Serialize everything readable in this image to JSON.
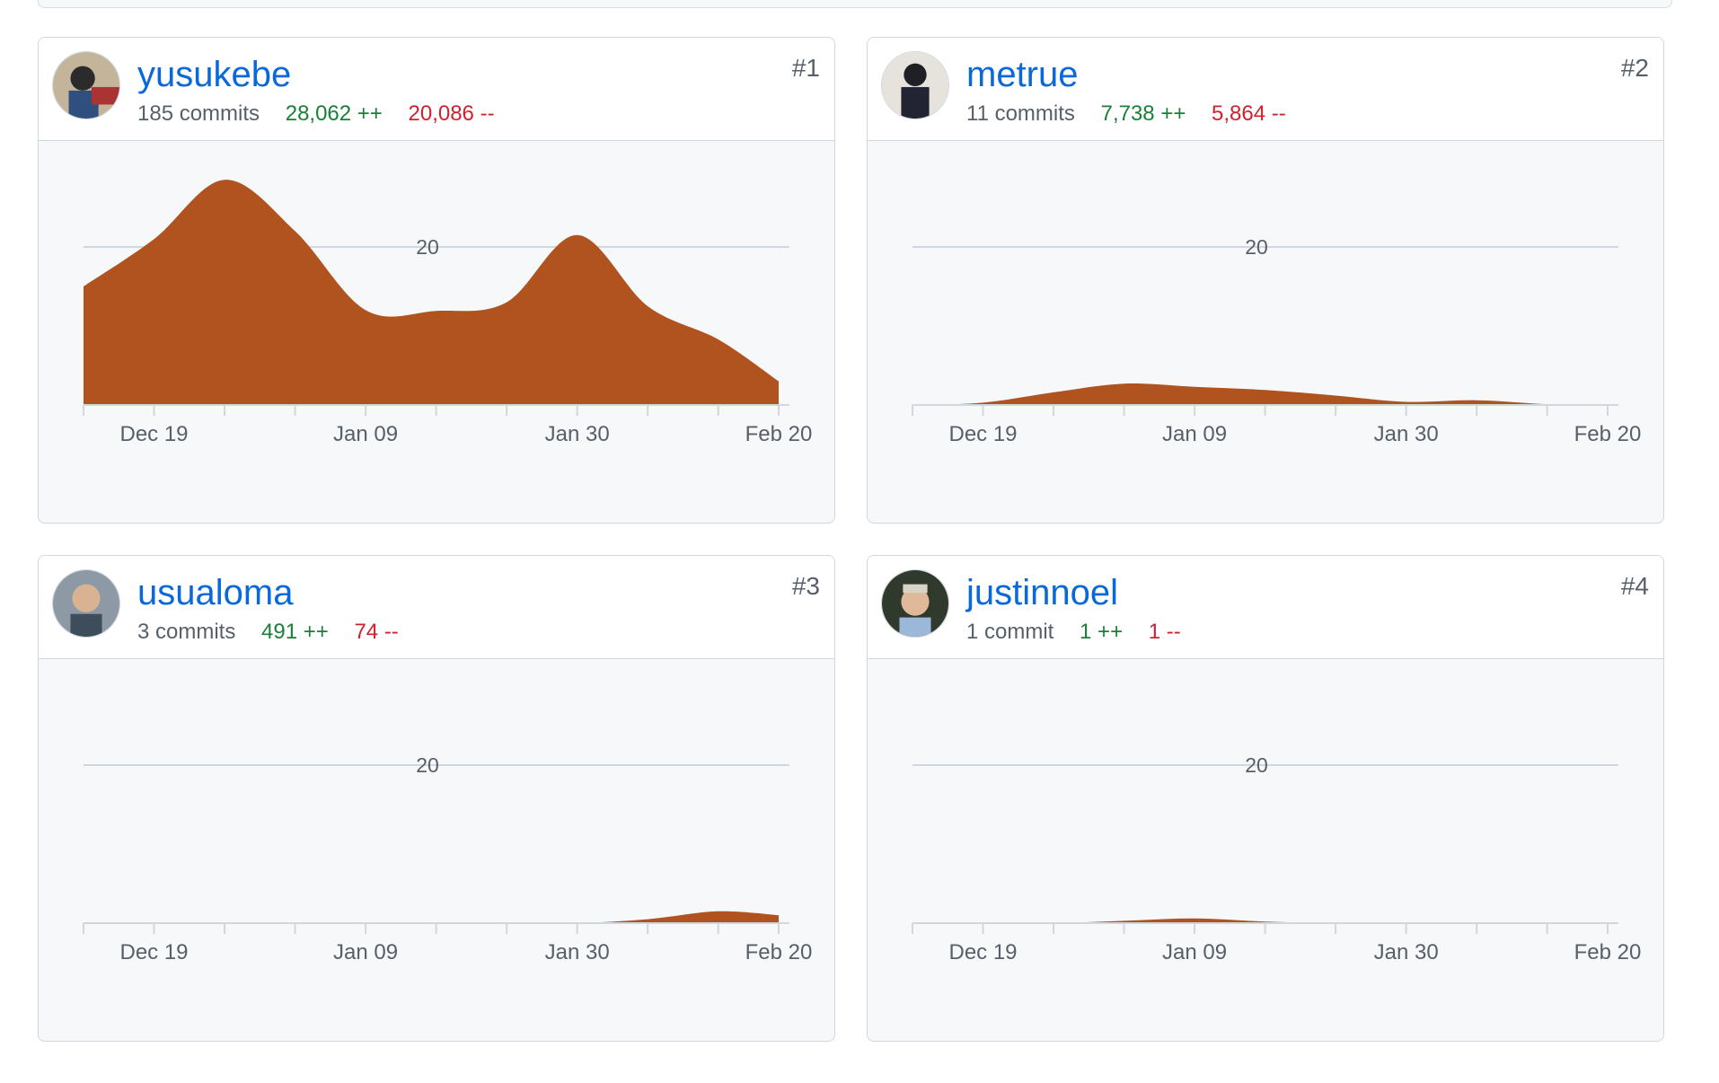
{
  "colors": {
    "area": "#b1531e",
    "axis": "#d0d7de",
    "label": "#57606a",
    "link": "#0969da"
  },
  "icons": {
    "avatar": "avatar-photo"
  },
  "contributors": [
    {
      "rank": "#1",
      "username": "yusukebe",
      "commits": "185 commits",
      "additions": "28,062 ++",
      "deletions": "20,086 --"
    },
    {
      "rank": "#2",
      "username": "metrue",
      "commits": "11 commits",
      "additions": "7,738 ++",
      "deletions": "5,864 --"
    },
    {
      "rank": "#3",
      "username": "usualoma",
      "commits": "3 commits",
      "additions": "491 ++",
      "deletions": "74 --"
    },
    {
      "rank": "#4",
      "username": "justinnoel",
      "commits": "1 commit",
      "additions": "1 ++",
      "deletions": "1 --"
    }
  ],
  "chart_data": [
    {
      "type": "area",
      "title": "yusukebe",
      "x": [
        "2021-12-12",
        "2021-12-19",
        "2021-12-26",
        "2022-01-02",
        "2022-01-09",
        "2022-01-16",
        "2022-01-23",
        "2022-01-30",
        "2022-02-06",
        "2022-02-13",
        "2022-02-19"
      ],
      "y": [
        15,
        21,
        28.5,
        22,
        12,
        11.9,
        13,
        21.5,
        12.5,
        8.3,
        3
      ],
      "ylim": [
        0,
        40
      ],
      "gridlines": [
        20
      ],
      "x_tick_labels": [
        "Dec 19",
        "Jan 09",
        "Jan 30",
        "Feb 20"
      ]
    },
    {
      "type": "area",
      "title": "metrue",
      "x": [
        "2021-12-12",
        "2021-12-19",
        "2021-12-26",
        "2022-01-02",
        "2022-01-09",
        "2022-01-16",
        "2022-01-23",
        "2022-01-30",
        "2022-02-06",
        "2022-02-13",
        "2022-02-19"
      ],
      "y": [
        0,
        0.3,
        1.6,
        2.7,
        2.3,
        1.9,
        1.2,
        0.4,
        0.6,
        0.1,
        0
      ],
      "ylim": [
        0,
        40
      ],
      "gridlines": [
        20
      ],
      "x_tick_labels": [
        "Dec 19",
        "Jan 09",
        "Jan 30",
        "Feb 20"
      ]
    },
    {
      "type": "area",
      "title": "usualoma",
      "x": [
        "2021-12-12",
        "2021-12-19",
        "2021-12-26",
        "2022-01-02",
        "2022-01-09",
        "2022-01-16",
        "2022-01-23",
        "2022-01-30",
        "2022-02-06",
        "2022-02-13",
        "2022-02-19"
      ],
      "y": [
        0,
        0,
        0,
        0,
        0,
        0,
        0,
        0,
        0.5,
        1.5,
        1
      ],
      "ylim": [
        0,
        40
      ],
      "gridlines": [
        20
      ],
      "x_tick_labels": [
        "Dec 19",
        "Jan 09",
        "Jan 30",
        "Feb 20"
      ]
    },
    {
      "type": "area",
      "title": "justinnoel",
      "x": [
        "2021-12-12",
        "2021-12-19",
        "2021-12-26",
        "2022-01-02",
        "2022-01-09",
        "2022-01-16",
        "2022-01-23",
        "2022-01-30",
        "2022-02-06",
        "2022-02-13",
        "2022-02-19"
      ],
      "y": [
        0,
        0,
        0,
        0.3,
        0.6,
        0.2,
        0,
        0,
        0,
        0,
        0
      ],
      "ylim": [
        0,
        40
      ],
      "gridlines": [
        20
      ],
      "x_tick_labels": [
        "Dec 19",
        "Jan 09",
        "Jan 30",
        "Feb 20"
      ]
    }
  ]
}
